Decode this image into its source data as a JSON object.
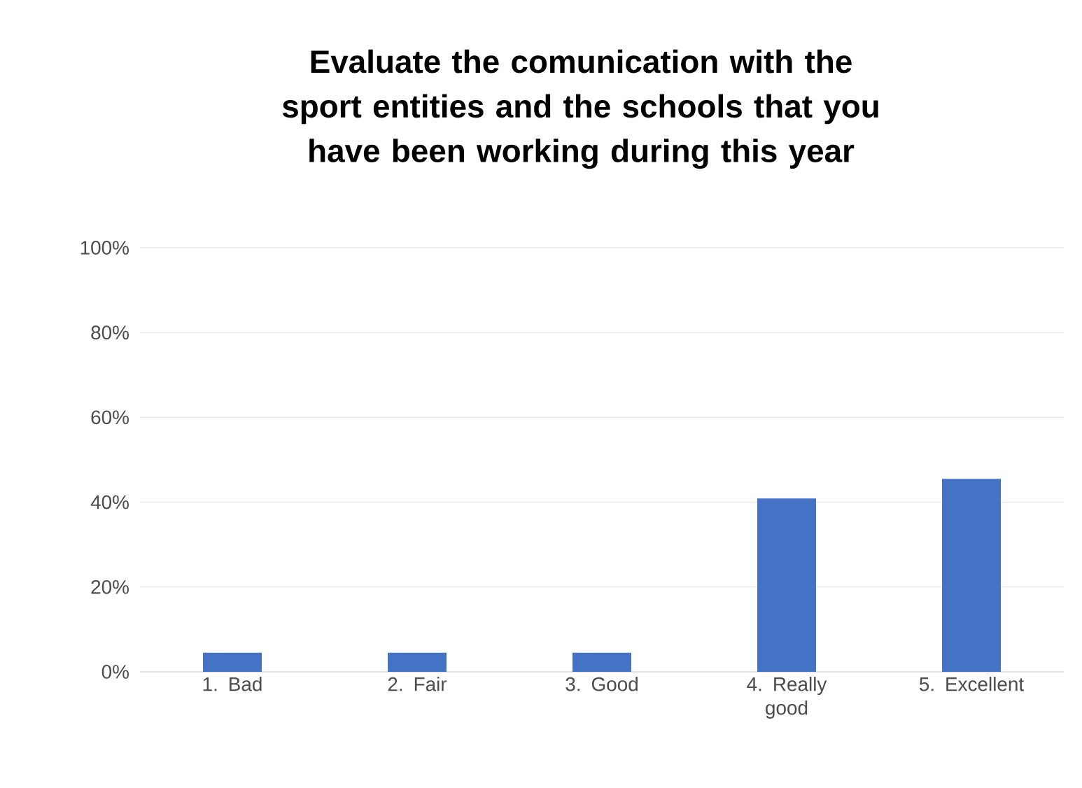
{
  "chart_data": {
    "type": "bar",
    "title": "Evaluate the comunication with the sport entities and the schools that you have been working during this year",
    "categories": [
      "1. Bad",
      "2. Fair",
      "3. Good",
      "4. Really good",
      "5. Excellent"
    ],
    "values": [
      4.5,
      4.5,
      4.5,
      40.9,
      45.5
    ],
    "color": "#4472c4",
    "ylim": [
      0,
      100
    ],
    "yticks": [
      {
        "value": 0,
        "label": "0%"
      },
      {
        "value": 20,
        "label": "20%"
      },
      {
        "value": 40,
        "label": "40%"
      },
      {
        "value": 60,
        "label": "60%"
      },
      {
        "value": 80,
        "label": "80%"
      },
      {
        "value": 100,
        "label": "100%"
      }
    ],
    "grid": "y"
  }
}
